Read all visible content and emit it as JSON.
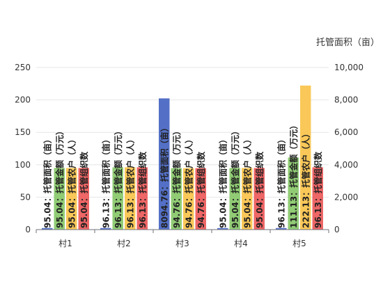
{
  "chart_data": {
    "type": "bar",
    "categories": [
      "村1",
      "村2",
      "村3",
      "村4",
      "村5"
    ],
    "series": [
      {
        "name": "托管面积（亩）",
        "axis": "right",
        "color": "#5470C6",
        "values": [
          95.04,
          96.13,
          8094.76,
          95.04,
          96.13
        ],
        "labels": [
          "95.04：托管面积（亩）",
          "96.13：托管面积（亩）",
          "8094.76：托管面积（亩）",
          "95.04：托管面积（亩）",
          "96.13：托管面积（亩）"
        ]
      },
      {
        "name": "托管金额（万元）",
        "axis": "left",
        "color": "#91CC75",
        "values": [
          95.04,
          96.13,
          94.76,
          95.04,
          111.13
        ],
        "labels": [
          "95.04：托管金额（万元）",
          "96.13：托管金额（万元）",
          "94.76：托管金额（万元）",
          "95.04：托管金额（万元）",
          "111.13：托管金额（万元）"
        ]
      },
      {
        "name": "托管农户（人）",
        "axis": "left",
        "color": "#FAC858",
        "values": [
          95.04,
          96.13,
          94.76,
          95.04,
          222.13
        ],
        "labels": [
          "95.04：托管农户（人）",
          "96.13：托管农户（人）",
          "94.76：托管农户（人）",
          "95.04：托管农户（人）",
          "222.13：托管农户（人）"
        ]
      },
      {
        "name": "托管组织数",
        "axis": "left",
        "color": "#EE6666",
        "values": [
          95.04,
          96.13,
          94.76,
          95.04,
          96.13
        ],
        "labels": [
          "95.04：托管组织数",
          "96.13：托管组织数",
          "94.76：托管组织数",
          "95.04：托管组织数",
          "96.13：托管组织数"
        ]
      }
    ],
    "y_left": {
      "ticks": [
        "0",
        "50",
        "100",
        "150",
        "200",
        "250"
      ],
      "ylim": [
        0,
        250
      ]
    },
    "y_right": {
      "ticks": [
        "0",
        "2,000",
        "4,000",
        "6,000",
        "8,000",
        "10,000"
      ],
      "ylim": [
        0,
        10000
      ],
      "label": "托管面积（亩）"
    },
    "grid": true,
    "legend": "none"
  }
}
